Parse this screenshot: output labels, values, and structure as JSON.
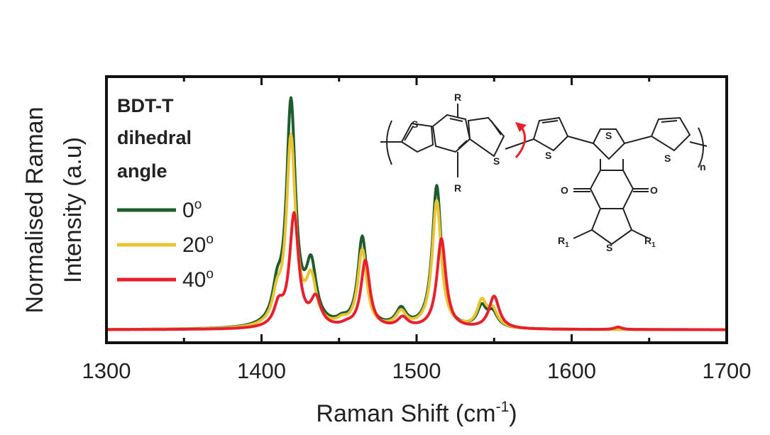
{
  "chart_data": {
    "type": "line",
    "title": "",
    "xlabel": "Raman Shift (cm",
    "xlabel_sup": "-1",
    "xlabel_end": ")",
    "ylabel_line1": "Normalised Raman",
    "ylabel_line2": "Intensity (a.u)",
    "xlim": [
      1300,
      1700
    ],
    "ylim": [
      0,
      1.0
    ],
    "xticks": [
      1300,
      1400,
      1500,
      1600,
      1700
    ],
    "legend_title_lines": [
      "BDT-T",
      "dihedral",
      "angle"
    ],
    "legend_position": "top-left",
    "degree_symbol": "o",
    "series": [
      {
        "name": "0",
        "color": "#1e5c2c",
        "peaks": [
          {
            "x": 1410,
            "amp": 0.12,
            "w": 3.5
          },
          {
            "x": 1419,
            "amp": 0.89,
            "w": 3.5
          },
          {
            "x": 1432,
            "amp": 0.23,
            "w": 4
          },
          {
            "x": 1452,
            "amp": 0.02,
            "w": 4
          },
          {
            "x": 1465,
            "amp": 0.36,
            "w": 3.5
          },
          {
            "x": 1490,
            "amp": 0.07,
            "w": 4
          },
          {
            "x": 1513,
            "amp": 0.57,
            "w": 3.5
          },
          {
            "x": 1542,
            "amp": 0.08,
            "w": 3.5
          },
          {
            "x": 1549,
            "amp": 0.06,
            "w": 4
          }
        ],
        "baseline": 0.015
      },
      {
        "name": "20",
        "color": "#e8c435",
        "peaks": [
          {
            "x": 1410,
            "amp": 0.1,
            "w": 3.5
          },
          {
            "x": 1419,
            "amp": 0.75,
            "w": 3.5
          },
          {
            "x": 1432,
            "amp": 0.18,
            "w": 4
          },
          {
            "x": 1452,
            "amp": 0.02,
            "w": 4
          },
          {
            "x": 1465,
            "amp": 0.31,
            "w": 3.5
          },
          {
            "x": 1490,
            "amp": 0.06,
            "w": 4
          },
          {
            "x": 1513,
            "amp": 0.51,
            "w": 3.5
          },
          {
            "x": 1542,
            "amp": 0.1,
            "w": 3.5
          },
          {
            "x": 1549,
            "amp": 0.07,
            "w": 4
          }
        ],
        "baseline": 0.015
      },
      {
        "name": "40",
        "color": "#e8202c",
        "peaks": [
          {
            "x": 1411,
            "amp": 0.08,
            "w": 3.5
          },
          {
            "x": 1421,
            "amp": 0.45,
            "w": 3.5
          },
          {
            "x": 1435,
            "amp": 0.11,
            "w": 4
          },
          {
            "x": 1455,
            "amp": 0.01,
            "w": 4
          },
          {
            "x": 1467,
            "amp": 0.27,
            "w": 3.5
          },
          {
            "x": 1491,
            "amp": 0.04,
            "w": 4
          },
          {
            "x": 1516,
            "amp": 0.36,
            "w": 3.5
          },
          {
            "x": 1550,
            "amp": 0.13,
            "w": 4
          },
          {
            "x": 1630,
            "amp": 0.01,
            "w": 3
          }
        ],
        "baseline": 0.015
      }
    ]
  },
  "molecule": {
    "labels": {
      "R_top": "R",
      "R_bottom": "R",
      "S_bdt_left": "S",
      "S_bdt_right": "S",
      "S_t1": "S",
      "S_core_top": "S",
      "S_t2": "S",
      "S_core_bottom": "S",
      "O_left": "O",
      "O_right": "O",
      "R1_left": "R",
      "R1_right": "R",
      "R1_sub": "1",
      "n_sub": "n"
    },
    "arrow_color": "#e8202c"
  }
}
